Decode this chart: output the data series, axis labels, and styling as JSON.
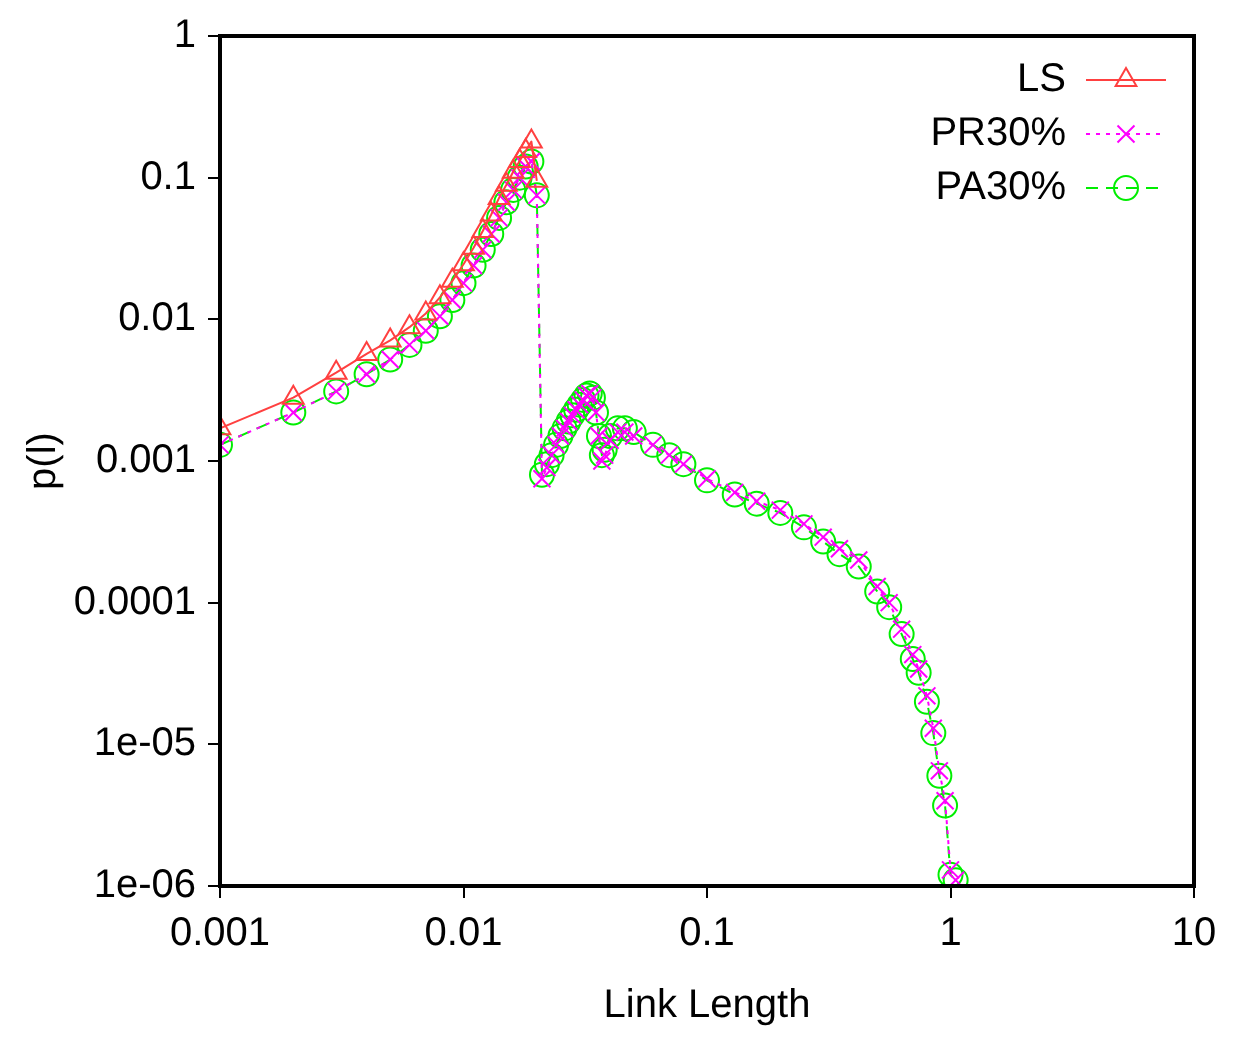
{
  "chart_data": {
    "type": "line",
    "xlabel": "Link Length",
    "ylabel": "p(l)",
    "log": "xy",
    "grid": false,
    "legend": "top right",
    "xlim": [
      0.001,
      10
    ],
    "xticks": [
      0.001,
      0.01,
      0.1,
      1,
      10
    ],
    "ylim": [
      1e-06,
      1
    ],
    "yticks": [
      {
        "value": 1e-06,
        "label": "1e-06"
      },
      {
        "value": 1e-05,
        "label": "1e-05"
      },
      0.0001,
      0.001,
      0.01,
      0.1,
      1
    ],
    "series": [
      {
        "name": "LS",
        "color": "#ff4040",
        "marker": "triangle",
        "line_style": "solid",
        "x": [
          0.001,
          0.002,
          0.003,
          0.004,
          0.005,
          0.006,
          0.007,
          0.008,
          0.009,
          0.01,
          0.011,
          0.012,
          0.013,
          0.014,
          0.015,
          0.016,
          0.017,
          0.018,
          0.019,
          0.02
        ],
        "values": [
          0.0017,
          0.0028,
          0.0042,
          0.0057,
          0.0071,
          0.0088,
          0.011,
          0.0143,
          0.0187,
          0.0245,
          0.032,
          0.042,
          0.055,
          0.072,
          0.089,
          0.11,
          0.131,
          0.154,
          0.18,
          0.095
        ]
      },
      {
        "name": "PR30%",
        "color": "#ff00ff",
        "marker": "cross",
        "line_style": "dotted",
        "x": [
          0.001,
          0.002,
          0.003,
          0.004,
          0.005,
          0.006,
          0.007,
          0.008,
          0.009,
          0.01,
          0.011,
          0.012,
          0.013,
          0.014,
          0.015,
          0.016,
          0.017,
          0.018,
          0.019,
          0.02,
          0.021,
          0.022,
          0.023,
          0.024,
          0.025,
          0.026,
          0.027,
          0.028,
          0.029,
          0.03,
          0.031,
          0.032,
          0.033,
          0.034,
          0.035,
          0.036,
          0.037,
          0.038,
          0.04,
          0.043,
          0.046,
          0.05,
          0.06,
          0.07,
          0.08,
          0.1,
          0.13,
          0.16,
          0.2,
          0.25,
          0.3,
          0.35,
          0.42,
          0.5,
          0.56,
          0.63,
          0.7,
          0.74,
          0.8,
          0.85,
          0.9,
          0.95,
          1,
          1.05
        ],
        "values": [
          0.0013,
          0.0022,
          0.0031,
          0.0041,
          0.0052,
          0.0066,
          0.0083,
          0.0105,
          0.0137,
          0.018,
          0.024,
          0.031,
          0.04,
          0.052,
          0.067,
          0.082,
          0.1,
          0.12,
          0.13,
          0.075,
          0.00075,
          0.0009,
          0.0011,
          0.0013,
          0.0015,
          0.0017,
          0.0019,
          0.0021,
          0.0023,
          0.0025,
          0.0027,
          0.0029,
          0.003,
          0.0028,
          0.0022,
          0.0015,
          0.001,
          0.0011,
          0.0014,
          0.0016,
          0.0016,
          0.0015,
          0.0013,
          0.0011,
          0.00095,
          0.00075,
          0.0006,
          0.00052,
          0.00045,
          0.00036,
          0.00029,
          0.00024,
          0.0002,
          0.00013,
          0.0001,
          6.5e-05,
          4.3e-05,
          3.4e-05,
          2.2e-05,
          1.3e-05,
          6.5e-06,
          4e-06,
          1.3e-06,
          1.1e-06
        ]
      },
      {
        "name": "PA30%",
        "color": "#00ee00",
        "marker": "circle",
        "line_style": "dashed",
        "x": [
          0.001,
          0.002,
          0.003,
          0.004,
          0.005,
          0.006,
          0.007,
          0.008,
          0.009,
          0.01,
          0.011,
          0.012,
          0.013,
          0.014,
          0.015,
          0.016,
          0.017,
          0.018,
          0.019,
          0.02,
          0.021,
          0.022,
          0.023,
          0.024,
          0.025,
          0.026,
          0.027,
          0.028,
          0.029,
          0.03,
          0.031,
          0.032,
          0.033,
          0.034,
          0.035,
          0.036,
          0.037,
          0.038,
          0.04,
          0.043,
          0.046,
          0.05,
          0.06,
          0.07,
          0.08,
          0.1,
          0.13,
          0.16,
          0.2,
          0.25,
          0.3,
          0.35,
          0.42,
          0.5,
          0.56,
          0.63,
          0.7,
          0.74,
          0.8,
          0.85,
          0.9,
          0.95,
          1,
          1.05
        ],
        "values": [
          0.0013,
          0.0022,
          0.0031,
          0.0041,
          0.0052,
          0.0066,
          0.0083,
          0.0105,
          0.0137,
          0.018,
          0.024,
          0.031,
          0.04,
          0.052,
          0.067,
          0.082,
          0.1,
          0.12,
          0.13,
          0.075,
          0.0008,
          0.00095,
          0.0011,
          0.0013,
          0.0015,
          0.0017,
          0.0019,
          0.0021,
          0.0023,
          0.0025,
          0.0027,
          0.0029,
          0.003,
          0.0028,
          0.0022,
          0.0015,
          0.0011,
          0.0012,
          0.0015,
          0.0017,
          0.0017,
          0.0016,
          0.0013,
          0.0011,
          0.00095,
          0.00073,
          0.00058,
          0.0005,
          0.00043,
          0.00034,
          0.00027,
          0.00022,
          0.00018,
          0.00012,
          9.3e-05,
          6e-05,
          4e-05,
          3.2e-05,
          2e-05,
          1.2e-05,
          6e-06,
          3.7e-06,
          1.2e-06,
          1.1e-06
        ]
      }
    ]
  }
}
